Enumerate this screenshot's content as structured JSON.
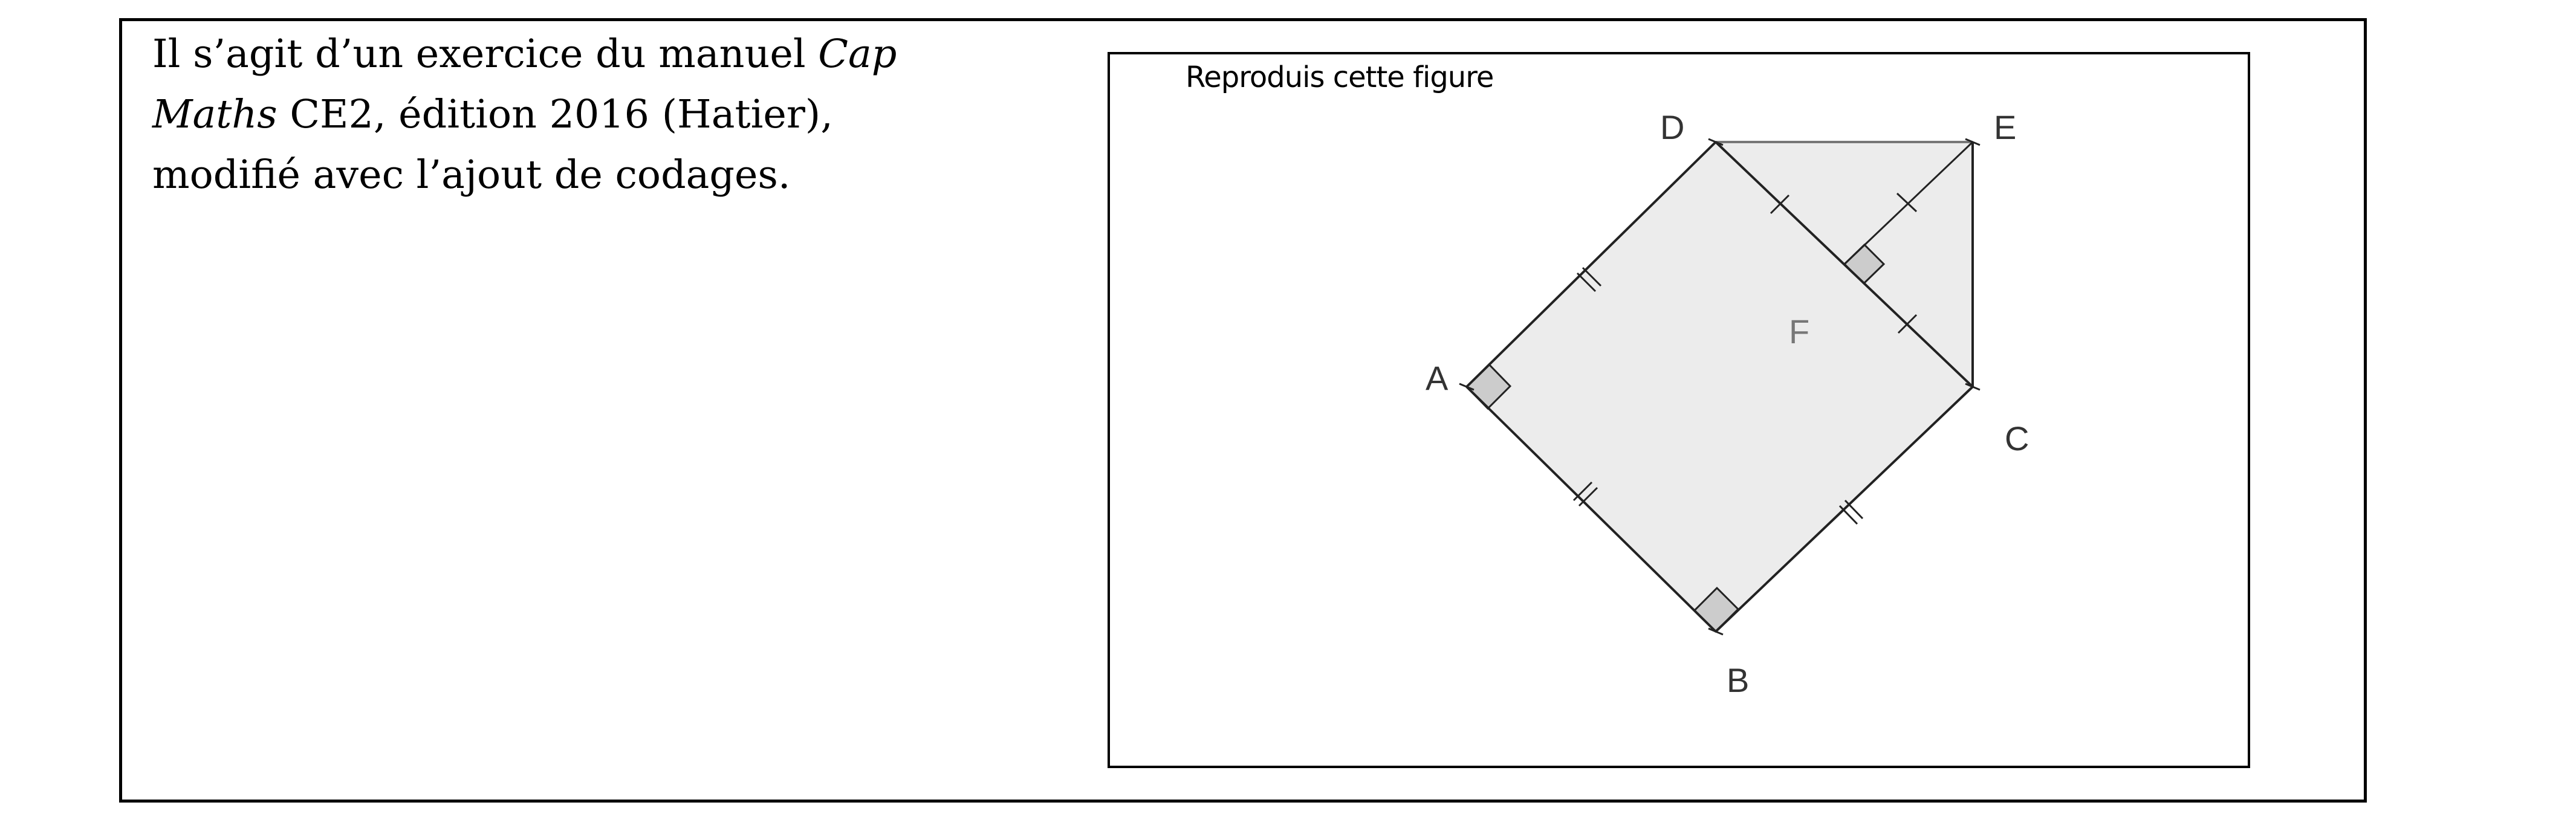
{
  "description": {
    "line1_text": "Il s’agit d’un exercice du manuel ",
    "line1_italic": "Cap",
    "line2_italic": "Maths",
    "line2_text": " CE2, édition 2016 (Hatier),",
    "line3_text": "modifié avec l’ajout de codages."
  },
  "figure": {
    "instruction": "Reproduis cette figure",
    "points": {
      "A": "A",
      "B": "B",
      "C": "C",
      "D": "D",
      "E": "E",
      "F": "F"
    },
    "fill_color": "#ececec",
    "right_angle_fill": "#cccccc",
    "line_color": "#222222"
  }
}
